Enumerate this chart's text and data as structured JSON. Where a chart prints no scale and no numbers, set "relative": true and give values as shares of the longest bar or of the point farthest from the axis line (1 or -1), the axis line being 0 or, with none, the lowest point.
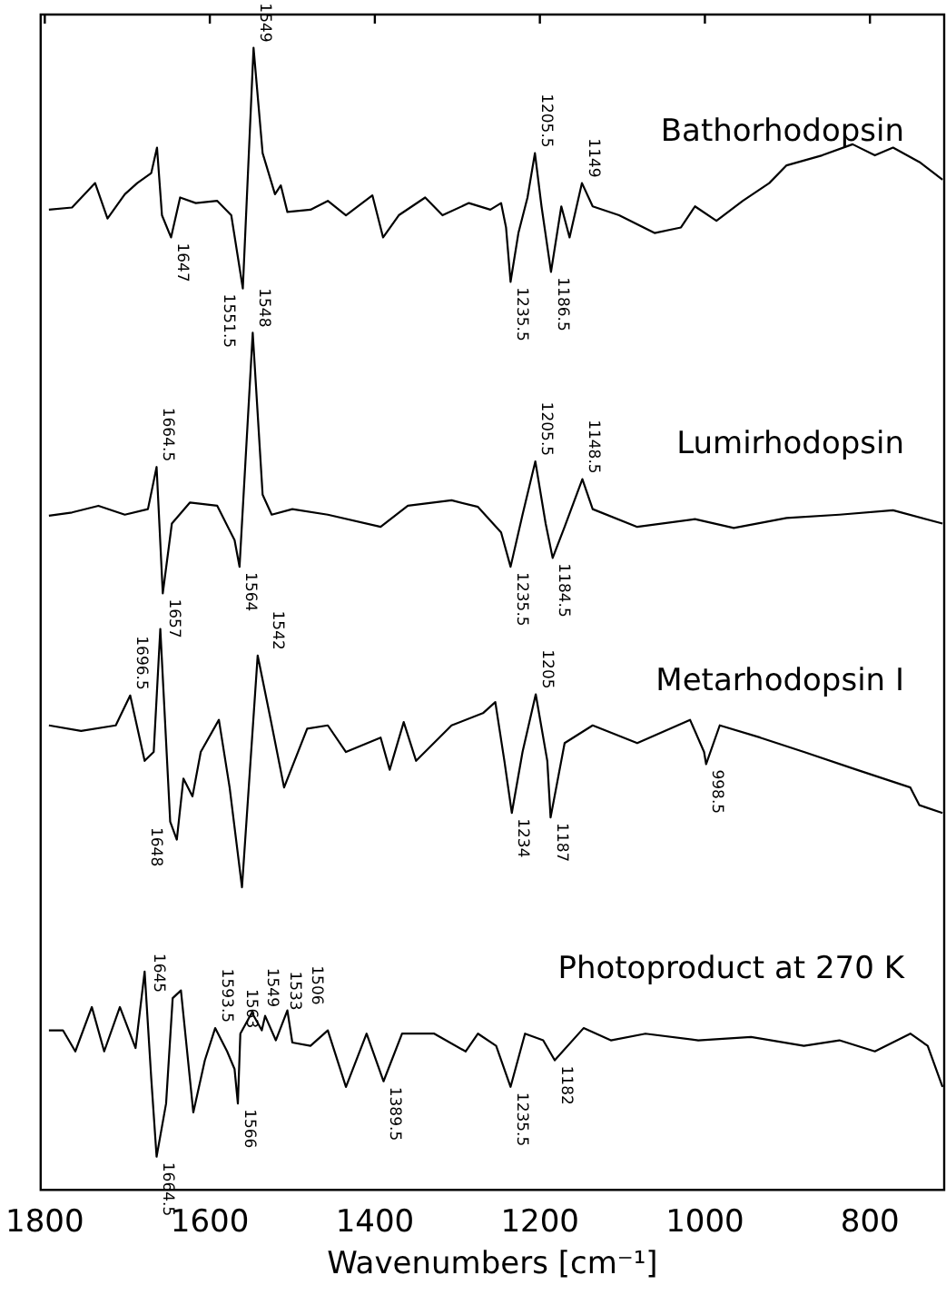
{
  "chart_data": {
    "type": "line",
    "relative": true,
    "xlabel": "Wavenumbers [cm⁻¹]",
    "xlim": [
      1805,
      710
    ],
    "xticks": [
      1800,
      1600,
      1400,
      1200,
      1000,
      800
    ],
    "grid": false,
    "legend": false,
    "marker": "none",
    "line_style": "solid",
    "series": [
      {
        "name": "Bathorhodopsin",
        "color": "#000000",
        "x": [
          1795,
          1767,
          1739,
          1724,
          1703,
          1688,
          1671,
          1664,
          1658,
          1647,
          1636,
          1617,
          1591,
          1574,
          1560,
          1547,
          1536,
          1521,
          1514,
          1506,
          1478,
          1457,
          1435,
          1403,
          1390,
          1371,
          1339,
          1318,
          1286,
          1260,
          1247,
          1241,
          1235.5,
          1226,
          1215,
          1206,
          1198,
          1186.5,
          1174,
          1164,
          1149,
          1136,
          1104,
          1061,
          1029,
          1012,
          986,
          954,
          922,
          901,
          858,
          821,
          794,
          772,
          740,
          712
        ],
        "values": [
          0.854,
          0.856,
          0.878,
          0.846,
          0.868,
          0.878,
          0.887,
          0.91,
          0.849,
          0.829,
          0.865,
          0.86,
          0.862,
          0.849,
          0.783,
          1,
          0.905,
          0.868,
          0.876,
          0.852,
          0.854,
          0.862,
          0.849,
          0.867,
          0.829,
          0.849,
          0.865,
          0.849,
          0.86,
          0.854,
          0.86,
          0.838,
          0.789,
          0.833,
          0.865,
          0.905,
          0.857,
          0.798,
          0.857,
          0.829,
          0.878,
          0.857,
          0.849,
          0.833,
          0.838,
          0.857,
          0.844,
          0.862,
          0.878,
          0.894,
          0.903,
          0.913,
          0.903,
          0.91,
          0.897,
          0.881
        ]
      },
      {
        "name": "Lumirhodopsin",
        "color": "#000000",
        "x": [
          1795,
          1767,
          1735,
          1703,
          1675,
          1664.5,
          1657,
          1646,
          1624,
          1591,
          1570,
          1564,
          1548,
          1536,
          1525,
          1500,
          1457,
          1393,
          1360,
          1307,
          1275,
          1247,
          1235.5,
          1221,
          1205.5,
          1193,
          1184.5,
          1170,
          1148.5,
          1136,
          1082,
          1012,
          965,
          901,
          837,
          772,
          712
        ],
        "values": [
          0.578,
          0.581,
          0.587,
          0.579,
          0.584,
          0.622,
          0.508,
          0.571,
          0.59,
          0.587,
          0.556,
          0.532,
          0.743,
          0.597,
          0.579,
          0.584,
          0.579,
          0.568,
          0.587,
          0.592,
          0.586,
          0.563,
          0.532,
          0.579,
          0.627,
          0.571,
          0.54,
          0.568,
          0.611,
          0.584,
          0.568,
          0.575,
          0.567,
          0.576,
          0.579,
          0.583,
          0.571
        ]
      },
      {
        "name": "Metarhodopsin I",
        "color": "#000000",
        "x": [
          1795,
          1756,
          1714,
          1696.5,
          1679,
          1668,
          1660,
          1648,
          1640,
          1632,
          1621,
          1611,
          1589,
          1576,
          1561,
          1542,
          1527,
          1510,
          1482,
          1457,
          1435,
          1393,
          1382,
          1365,
          1350,
          1307,
          1269,
          1254,
          1243,
          1234,
          1221,
          1205,
          1191,
          1187,
          1170,
          1136,
          1082,
          1018,
          1001,
          998.5,
          982,
          933,
          880,
          816,
          751,
          740,
          712
        ],
        "values": [
          0.389,
          0.384,
          0.389,
          0.416,
          0.357,
          0.365,
          0.476,
          0.302,
          0.286,
          0.341,
          0.325,
          0.365,
          0.394,
          0.333,
          0.243,
          0.452,
          0.397,
          0.333,
          0.386,
          0.389,
          0.365,
          0.378,
          0.349,
          0.392,
          0.357,
          0.389,
          0.4,
          0.41,
          0.357,
          0.31,
          0.365,
          0.417,
          0.357,
          0.306,
          0.373,
          0.389,
          0.373,
          0.394,
          0.365,
          0.354,
          0.389,
          0.378,
          0.365,
          0.349,
          0.333,
          0.317,
          0.31
        ]
      },
      {
        "name": "Photoproduct at 270 K",
        "color": "#000000",
        "x": [
          1795,
          1778,
          1763,
          1743,
          1728,
          1709,
          1690,
          1679,
          1671,
          1664.5,
          1653,
          1645,
          1635,
          1620,
          1606,
          1593.5,
          1579,
          1570,
          1566,
          1563,
          1549,
          1537,
          1533,
          1520,
          1506,
          1500,
          1478,
          1457,
          1435,
          1410,
          1389.5,
          1367,
          1328,
          1290,
          1275,
          1253,
          1235.5,
          1218,
          1196,
          1182,
          1147,
          1114,
          1072,
          1008,
          944,
          880,
          837,
          794,
          751,
          730,
          712
        ],
        "values": [
          0.114,
          0.114,
          0.095,
          0.135,
          0.095,
          0.135,
          0.098,
          0.167,
          0.071,
          0,
          0.048,
          0.143,
          0.15,
          0.04,
          0.087,
          0.116,
          0.095,
          0.079,
          0.048,
          0.111,
          0.13,
          0.114,
          0.127,
          0.105,
          0.132,
          0.103,
          0.1,
          0.114,
          0.063,
          0.111,
          0.068,
          0.111,
          0.111,
          0.095,
          0.111,
          0.1,
          0.063,
          0.111,
          0.105,
          0.087,
          0.116,
          0.105,
          0.111,
          0.105,
          0.108,
          0.1,
          0.105,
          0.095,
          0.111,
          0.1,
          0.063
        ]
      }
    ],
    "annotations": [
      {
        "text": "1549",
        "x": 1547,
        "y": 1
      },
      {
        "text": "1647",
        "x": 1647,
        "y": 0.829
      },
      {
        "text": "1551.5",
        "x": 1560,
        "y": 0.783
      },
      {
        "text": "1205.5",
        "x": 1206,
        "y": 0.905
      },
      {
        "text": "1149",
        "x": 1149,
        "y": 0.878
      },
      {
        "text": "1235.5",
        "x": 1235.5,
        "y": 0.789
      },
      {
        "text": "1186.5",
        "x": 1186.5,
        "y": 0.798
      },
      {
        "text": "1664.5",
        "x": 1664.5,
        "y": 0.622
      },
      {
        "text": "1548",
        "x": 1548,
        "y": 0.743
      },
      {
        "text": "1205.5",
        "x": 1205.5,
        "y": 0.627
      },
      {
        "text": "1148.5",
        "x": 1148.5,
        "y": 0.611
      },
      {
        "text": "1657",
        "x": 1657,
        "y": 0.508
      },
      {
        "text": "1564",
        "x": 1564,
        "y": 0.532
      },
      {
        "text": "1235.5",
        "x": 1235.5,
        "y": 0.532
      },
      {
        "text": "1184.5",
        "x": 1184.5,
        "y": 0.54
      },
      {
        "text": "1696.5",
        "x": 1696.5,
        "y": 0.416
      },
      {
        "text": "1542",
        "x": 1542,
        "y": 0.452
      },
      {
        "text": "1205",
        "x": 1205,
        "y": 0.417
      },
      {
        "text": "1648",
        "x": 1648,
        "y": 0.302
      },
      {
        "text": "1234",
        "x": 1234,
        "y": 0.31
      },
      {
        "text": "1187",
        "x": 1187,
        "y": 0.306
      },
      {
        "text": "998.5",
        "x": 998.5,
        "y": 0.354
      },
      {
        "text": "1645",
        "x": 1645,
        "y": 0.143
      },
      {
        "text": "1593.5",
        "x": 1593.5,
        "y": 0.116
      },
      {
        "text": "1563",
        "x": 1563,
        "y": 0.111
      },
      {
        "text": "1549",
        "x": 1549,
        "y": 0.13
      },
      {
        "text": "1533",
        "x": 1533,
        "y": 0.127
      },
      {
        "text": "1506",
        "x": 1506,
        "y": 0.132
      },
      {
        "text": "1664.5",
        "x": 1664.5,
        "y": 0
      },
      {
        "text": "1566",
        "x": 1566,
        "y": 0.048
      },
      {
        "text": "1389.5",
        "x": 1389.5,
        "y": 0.068
      },
      {
        "text": "1235.5",
        "x": 1235.5,
        "y": 0.063
      },
      {
        "text": "1182",
        "x": 1182,
        "y": 0.087
      }
    ]
  }
}
